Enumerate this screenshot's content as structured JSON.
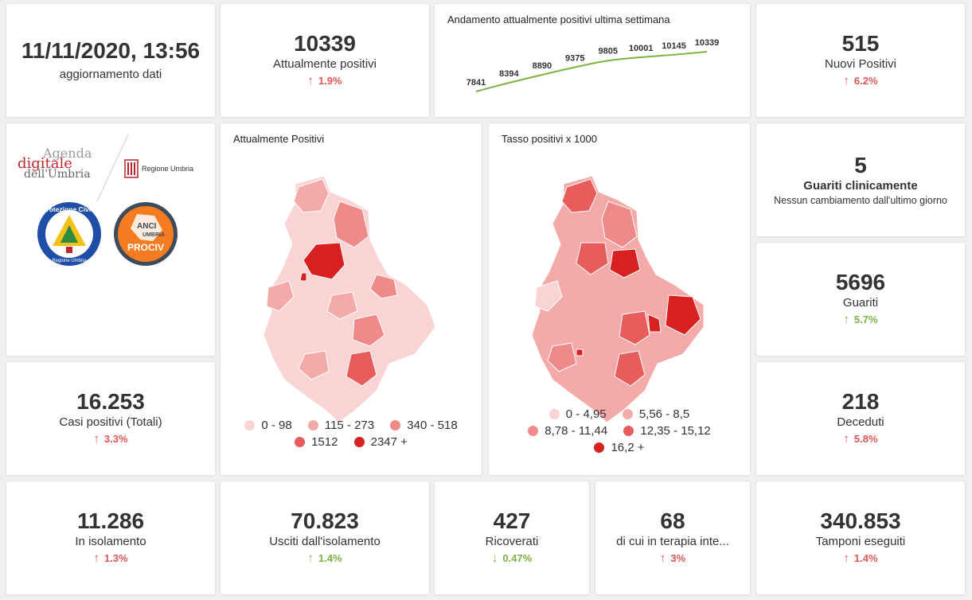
{
  "update": {
    "datetime": "11/11/2020, 13:56",
    "label": "aggiornamento dati"
  },
  "attualmente_positivi": {
    "value": "10339",
    "label": "Attualmente positivi",
    "change": "1.9%",
    "direction": "up"
  },
  "trend": {
    "title": "Andamento attualmente positivi ultima settimana",
    "chart_data": {
      "type": "line",
      "title": "Andamento attualmente positivi ultima settimana",
      "x": [
        1,
        2,
        3,
        4,
        5,
        6,
        7,
        8
      ],
      "values": [
        7841,
        8394,
        8890,
        9375,
        9805,
        10001,
        10145,
        10339
      ],
      "labels": [
        "7841",
        "8394",
        "8890",
        "9375",
        "9805",
        "10001",
        "10145",
        "10339"
      ],
      "color": "#7cb342"
    }
  },
  "nuovi_positivi": {
    "value": "515",
    "label": "Nuovi Positivi",
    "change": "6.2%",
    "direction": "up"
  },
  "logos": {
    "agenda_line1": "Agenda",
    "agenda_line2": "digitale",
    "agenda_line3": "dell'Umbria",
    "regione": "Regione Umbria",
    "protezione_top": "Protezione Civile",
    "protezione_bottom": "Regione Umbria",
    "anci_line1": "ANCI",
    "anci_line2": "UMBRIA",
    "anci_line3": "PROCIV"
  },
  "map_positivi": {
    "title": "Attualmente Positivi",
    "legend": [
      {
        "label": "0 - 98",
        "color": "#fad4d4"
      },
      {
        "label": "115 - 273",
        "color": "#f5aaaa"
      },
      {
        "label": "340 - 518",
        "color": "#ef8a8a"
      },
      {
        "label": "1512",
        "color": "#e85c5c"
      },
      {
        "label": "2347 +",
        "color": "#d82020"
      }
    ]
  },
  "map_tasso": {
    "title": "Tasso positivi x 1000",
    "legend": [
      {
        "label": "0 - 4,95",
        "color": "#fad4d4"
      },
      {
        "label": "5,56 - 8,5",
        "color": "#f5aaaa"
      },
      {
        "label": "8,78 - 11,44",
        "color": "#ef8a8a"
      },
      {
        "label": "12,35 - 15,12",
        "color": "#e85c5c"
      },
      {
        "label": "16,2 +",
        "color": "#d82020"
      }
    ]
  },
  "guariti_clinicamente": {
    "value": "5",
    "label": "Guariti clinicamente",
    "note": "Nessun cambiamento dall'ultimo giorno"
  },
  "guariti": {
    "value": "5696",
    "label": "Guariti",
    "change": "5.7%",
    "direction": "up"
  },
  "casi_totali": {
    "value": "16.253",
    "label": "Casi positivi (Totali)",
    "change": "3.3%",
    "direction": "up"
  },
  "deceduti": {
    "value": "218",
    "label": "Deceduti",
    "change": "5.8%",
    "direction": "up"
  },
  "isolamento": {
    "value": "11.286",
    "label": "In isolamento",
    "change": "1.3%",
    "direction": "up"
  },
  "usciti": {
    "value": "70.823",
    "label": "Usciti dall'isolamento",
    "change": "1.4%",
    "direction": "up"
  },
  "ricoverati": {
    "value": "427",
    "label": "Ricoverati",
    "change": "0.47%",
    "direction": "down"
  },
  "terapia": {
    "value": "68",
    "label": "di cui in terapia inte...",
    "change": "3%",
    "direction": "up"
  },
  "tamponi": {
    "value": "340.853",
    "label": "Tamponi eseguiti",
    "change": "1.4%",
    "direction": "up"
  }
}
